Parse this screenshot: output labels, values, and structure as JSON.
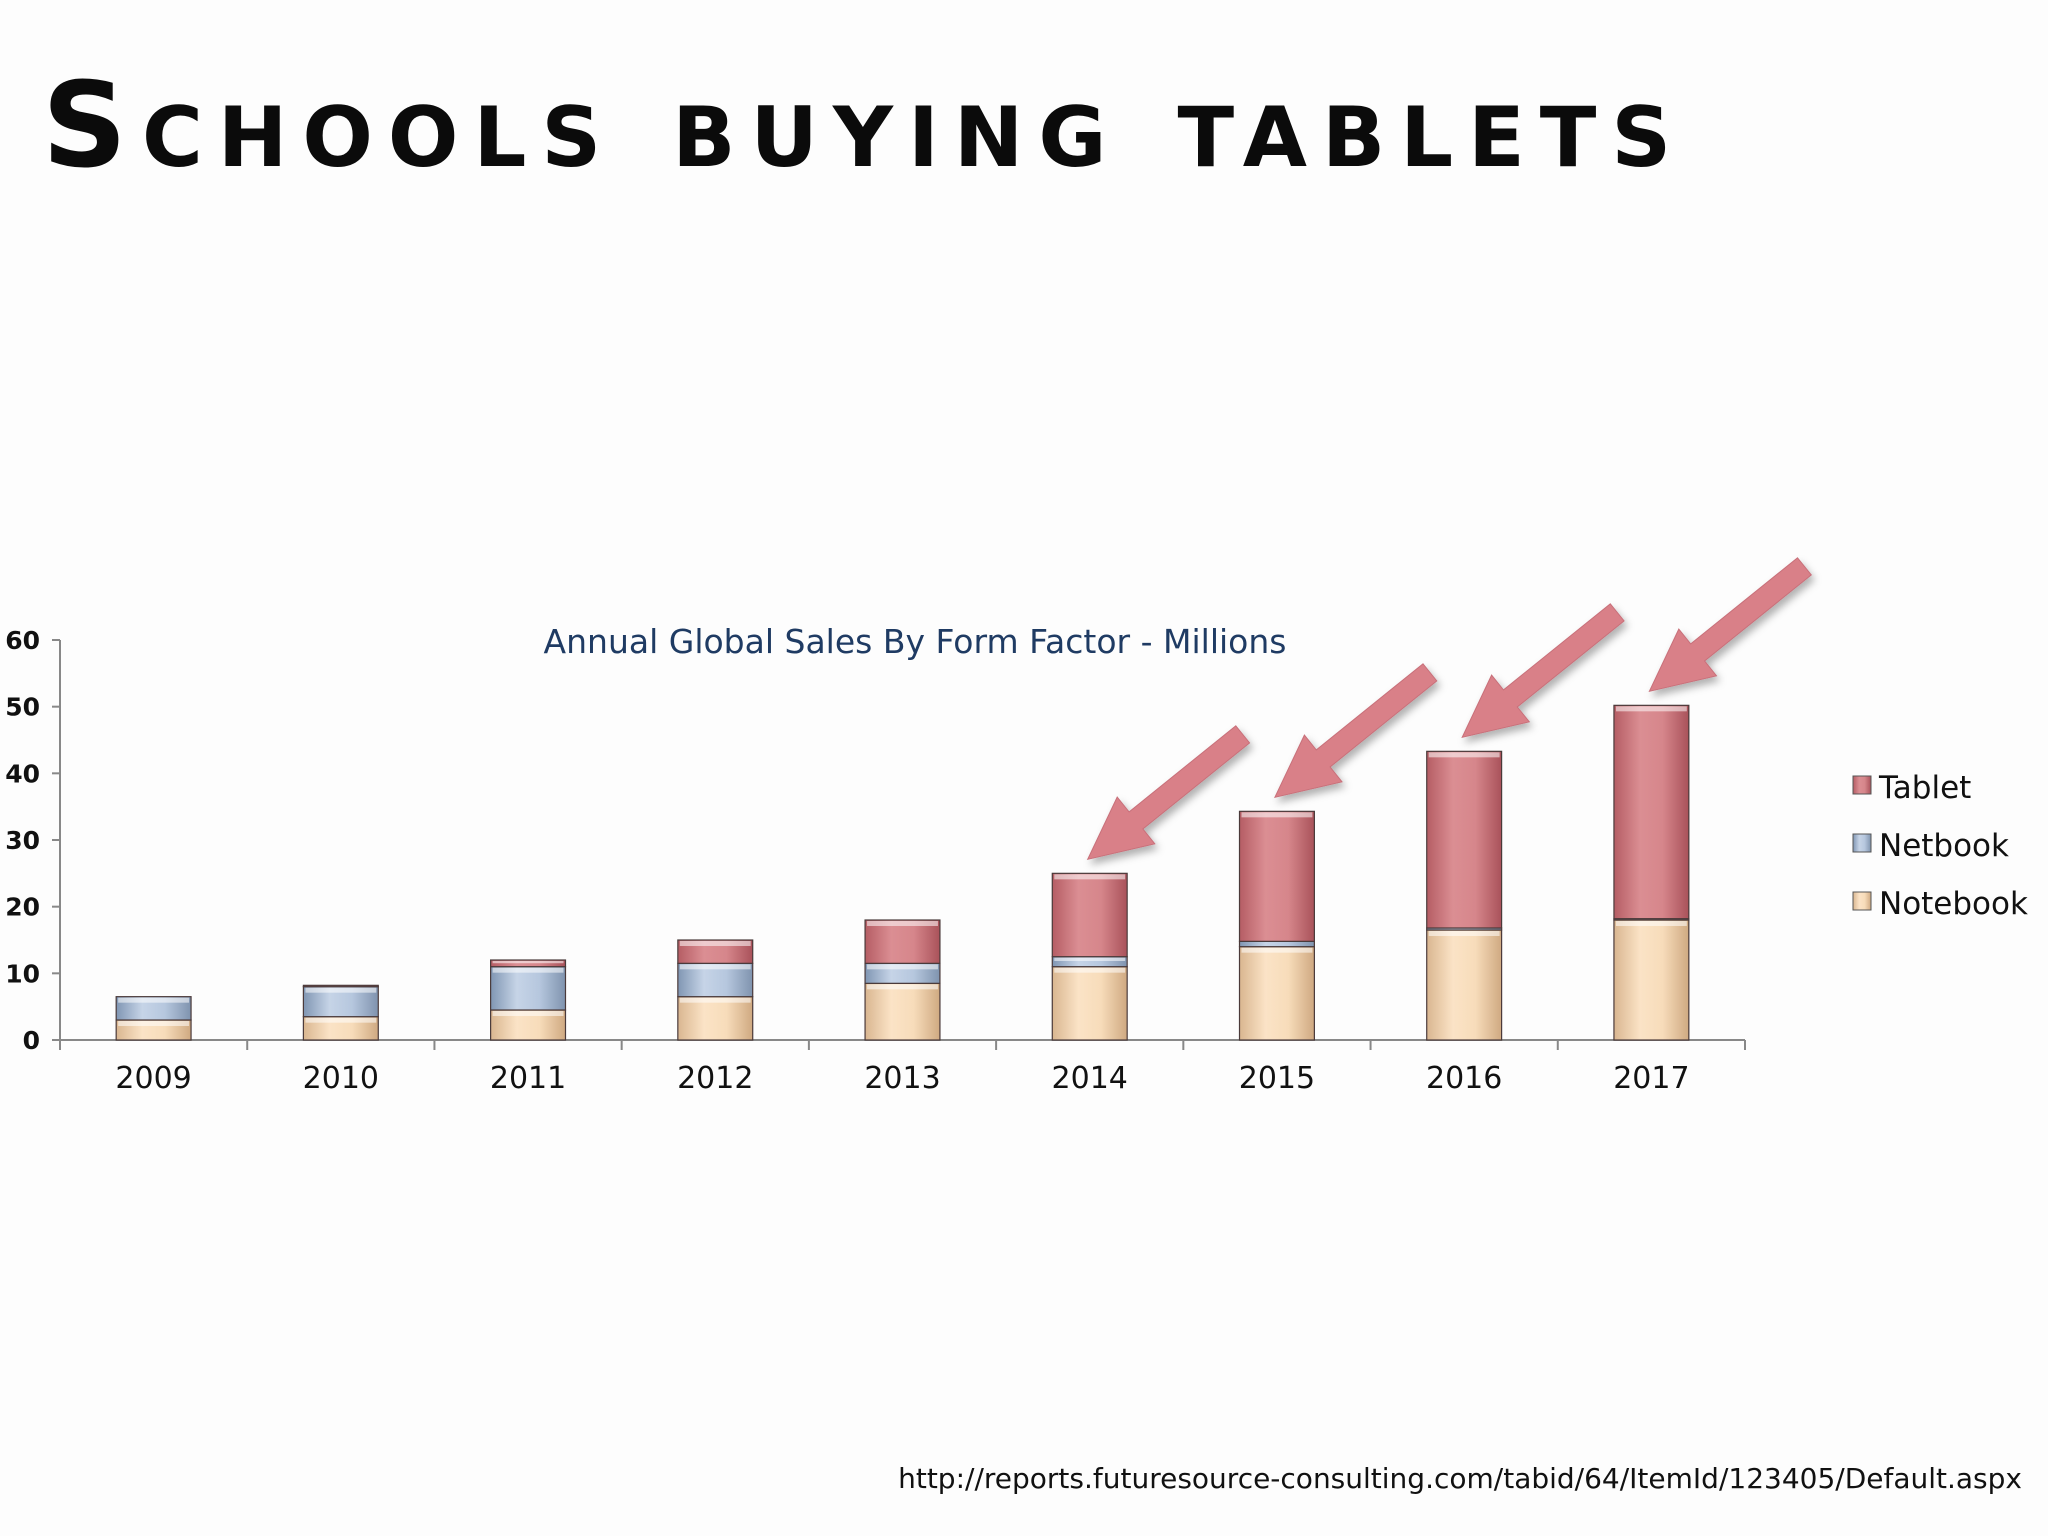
{
  "slide": {
    "title": "Schools buying tablets",
    "source_url": "http://reports.futuresource-consulting.com/tabid/64/ItemId/123405/Default.aspx"
  },
  "chart_data": {
    "type": "bar",
    "stacked": true,
    "title": "Annual Global Sales By Form Factor - Millions",
    "xlabel": "",
    "ylabel": "",
    "categories": [
      "2009",
      "2010",
      "2011",
      "2012",
      "2013",
      "2014",
      "2015",
      "2016",
      "2017"
    ],
    "series": [
      {
        "name": "Notebook",
        "color": "#f3d5b0",
        "values": [
          3,
          3.5,
          4.5,
          6.5,
          8.5,
          11,
          14,
          16.5,
          18
        ]
      },
      {
        "name": "Netbook",
        "color": "#a9bcd6",
        "values": [
          3.5,
          4.5,
          6.5,
          5,
          3,
          1.5,
          0.8,
          0.3,
          0.2
        ]
      },
      {
        "name": "Tablet",
        "color": "#cf7a80",
        "values": [
          0,
          0.2,
          1,
          3.5,
          6.5,
          12.5,
          19.5,
          26.5,
          32
        ]
      }
    ],
    "ylim": [
      0,
      60
    ],
    "yticks": [
      0,
      10,
      20,
      30,
      40,
      50,
      60
    ],
    "legend": {
      "position": "right",
      "order": [
        "Tablet",
        "Netbook",
        "Notebook"
      ]
    },
    "annotations": {
      "arrows_point_to": [
        "2014",
        "2015",
        "2016",
        "2017"
      ]
    },
    "grid": false
  }
}
